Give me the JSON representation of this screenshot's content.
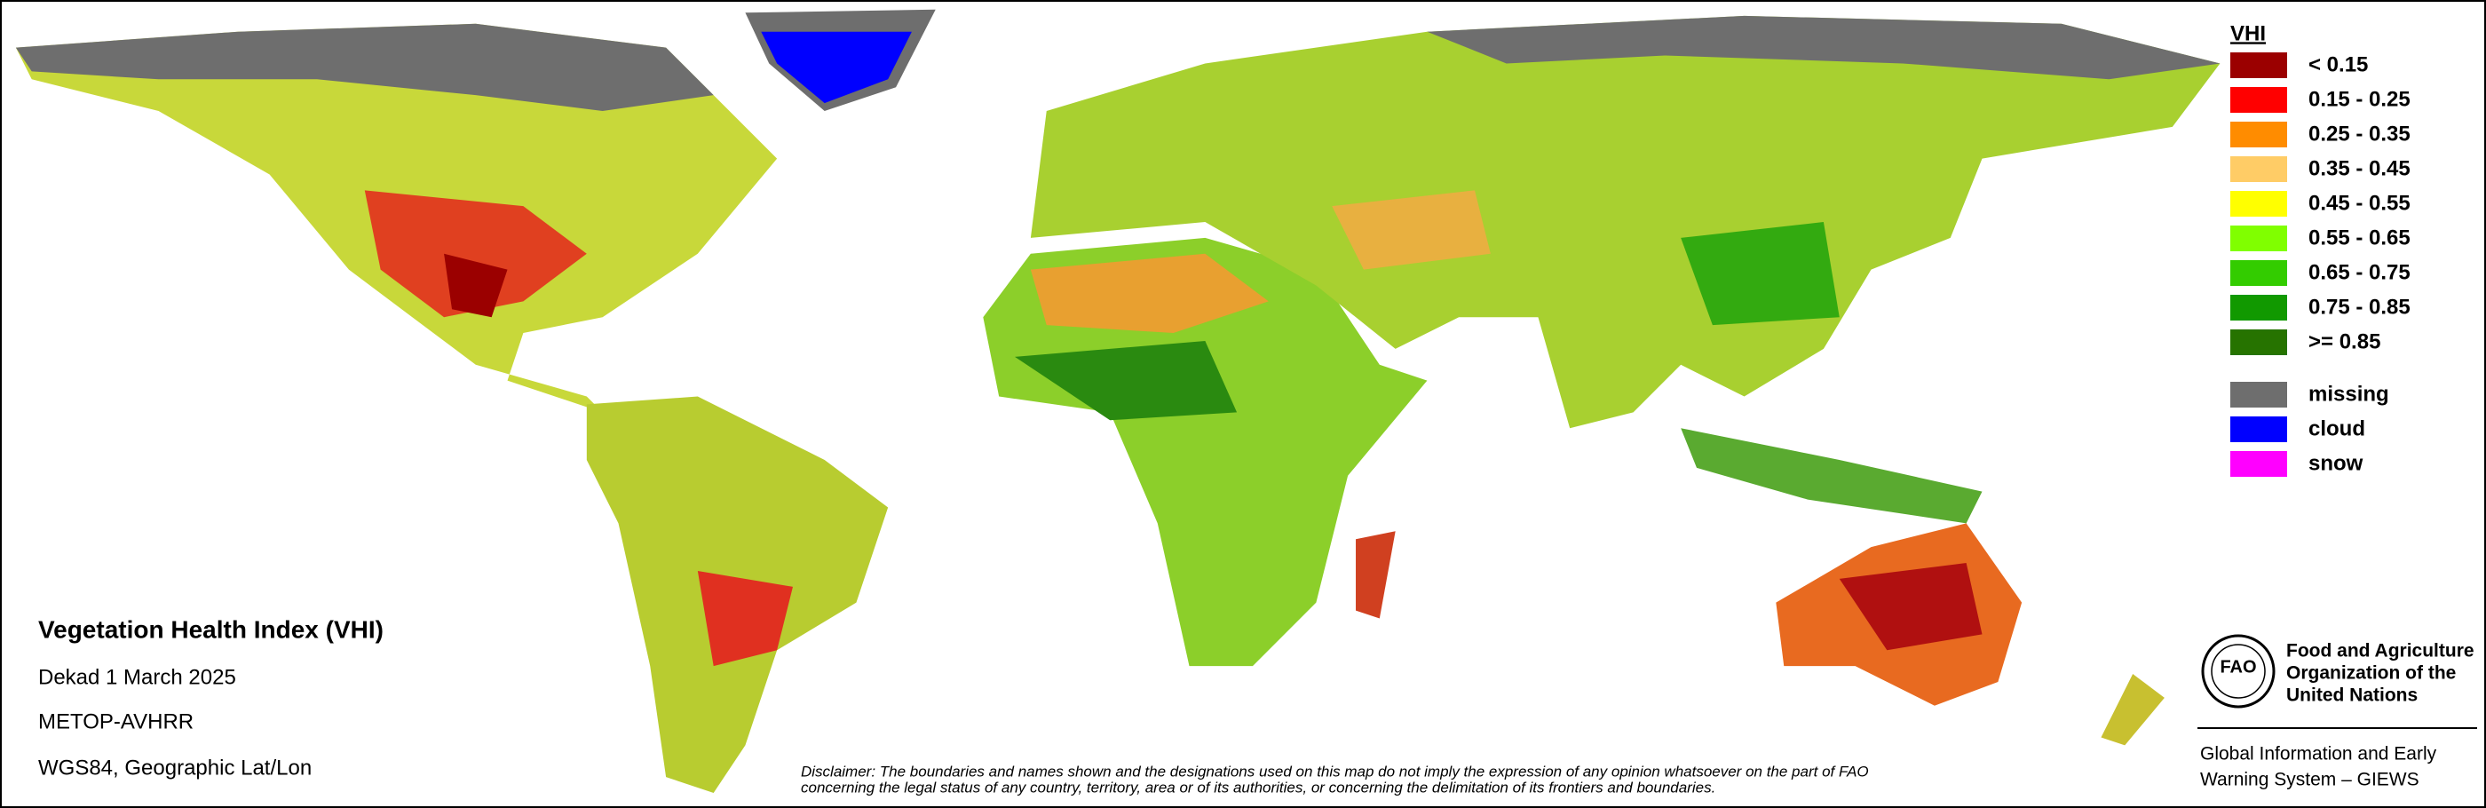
{
  "legend": {
    "title": "VHI",
    "classes": [
      {
        "label": "< 0.15",
        "color": "#9b0000"
      },
      {
        "label": "0.15 - 0.25",
        "color": "#ff0000"
      },
      {
        "label": "0.25 - 0.35",
        "color": "#ff8c00"
      },
      {
        "label": "0.35 - 0.45",
        "color": "#ffcc66"
      },
      {
        "label": "0.45 - 0.55",
        "color": "#ffff00"
      },
      {
        "label": "0.55 - 0.65",
        "color": "#80ff00"
      },
      {
        "label": "0.65 - 0.75",
        "color": "#33cc00"
      },
      {
        "label": "0.75 - 0.85",
        "color": "#119900"
      },
      {
        "label": ">= 0.85",
        "color": "#267300"
      }
    ],
    "masks": [
      {
        "label": "missing",
        "color": "#6e6e6e"
      },
      {
        "label": "cloud",
        "color": "#0000ff"
      },
      {
        "label": "snow",
        "color": "#ff00ff"
      }
    ]
  },
  "info": {
    "title": "Vegetation Health Index (VHI)",
    "lines": [
      "Dekad 1 March 2025",
      "METOP-AVHRR",
      "WGS84, Geographic Lat/Lon"
    ]
  },
  "disclaimer": [
    "Disclaimer: The boundaries and names shown and the designations used on this map do not imply the expression of any opinion whatsoever on the part of FAO",
    "concerning the legal status of any country, territory, area or of its authorities, or concerning the delimitation of its frontiers and boundaries."
  ],
  "organization": {
    "logo": "FAO",
    "name": [
      "Food and Agriculture",
      "Organization of the",
      "United Nations"
    ],
    "system": [
      "Global Information and Early",
      "Warning System – GIEWS"
    ]
  }
}
